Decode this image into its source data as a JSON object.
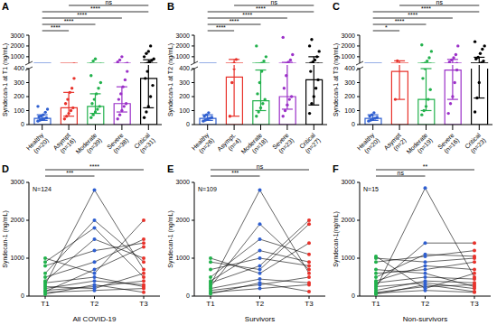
{
  "chart_data": [
    {
      "type": "bar",
      "panel_label": "A",
      "ylabel": "Syndecan-1 at T1 (ng/mL)",
      "categories": [
        "Healthy (n=20)",
        "Asympt (n=16)",
        "Moderate (n=39)",
        "Severe (n=38)",
        "Critical (n=31)"
      ],
      "colors": [
        "#2f5fd0",
        "#e8322b",
        "#22b14c",
        "#9b30c8",
        "#000000"
      ],
      "values": [
        45,
        120,
        130,
        150,
        330
      ],
      "error_ranges": [
        [
          30,
          70
        ],
        [
          60,
          230
        ],
        [
          80,
          220
        ],
        [
          90,
          270
        ],
        [
          120,
          720
        ]
      ],
      "points": [
        [
          25,
          32,
          38,
          42,
          48,
          55,
          62,
          70,
          88,
          110,
          130
        ],
        [
          40,
          60,
          80,
          100,
          120,
          150,
          180,
          230,
          260,
          330
        ],
        [
          50,
          70,
          90,
          110,
          130,
          150,
          180,
          220,
          260,
          300,
          350,
          600,
          800
        ],
        [
          40,
          70,
          100,
          130,
          150,
          180,
          220,
          270,
          320,
          380,
          500,
          700,
          1000
        ],
        [
          50,
          90,
          130,
          200,
          280,
          330,
          380,
          500,
          650,
          800,
          1000,
          1300,
          1500,
          2000
        ]
      ],
      "ylim": [
        0,
        3000
      ],
      "y_break": 400,
      "yticks": [
        0,
        100,
        200,
        300,
        400,
        1000,
        2000,
        3000
      ],
      "comparisons": [
        {
          "between": [
            "Healthy (n=20)",
            "Asympt (n=16)"
          ],
          "label": "****"
        },
        {
          "between": [
            "Healthy (n=20)",
            "Moderate (n=39)"
          ],
          "label": "****"
        },
        {
          "between": [
            "Healthy (n=20)",
            "Severe (n=38)"
          ],
          "label": "****"
        },
        {
          "between": [
            "Healthy (n=20)",
            "Critical (n=31)"
          ],
          "label": "****"
        },
        {
          "between": [
            "Asympt (n=16)",
            "Critical (n=31)"
          ],
          "label": "ns"
        }
      ]
    },
    {
      "type": "bar",
      "panel_label": "B",
      "ylabel": "Syndecan-1 at T2 (ng/mL)",
      "categories": [
        "Healthy (n=26)",
        "Asympt. (n=4)",
        "Moderate (n=18)",
        "Severe (n=23)",
        "Critical (n=27)"
      ],
      "colors": [
        "#2f5fd0",
        "#e8322b",
        "#22b14c",
        "#9b30c8",
        "#000000"
      ],
      "values": [
        45,
        340,
        170,
        200,
        320
      ],
      "error_ranges": [
        [
          30,
          70
        ],
        [
          60,
          750
        ],
        [
          100,
          390
        ],
        [
          110,
          480
        ],
        [
          140,
          1000
        ]
      ],
      "points": [
        [
          25,
          32,
          40,
          45,
          52,
          60,
          70,
          85
        ],
        [
          60,
          300,
          400,
          750
        ],
        [
          60,
          90,
          120,
          150,
          180,
          220,
          300,
          380,
          600,
          1000,
          2000
        ],
        [
          60,
          100,
          140,
          180,
          200,
          260,
          350,
          480,
          700,
          1200,
          2800
        ],
        [
          80,
          150,
          200,
          260,
          320,
          380,
          500,
          700,
          1000,
          1500,
          2000,
          2600
        ]
      ],
      "ylim": [
        0,
        3000
      ],
      "y_break": 400,
      "yticks": [
        0,
        100,
        200,
        300,
        400,
        1000,
        2000,
        3000
      ],
      "comparisons": [
        {
          "between": [
            "Healthy (n=26)",
            "Asympt. (n=4)"
          ],
          "label": "****"
        },
        {
          "between": [
            "Healthy (n=26)",
            "Moderate (n=18)"
          ],
          "label": "****"
        },
        {
          "between": [
            "Healthy (n=26)",
            "Severe (n=23)"
          ],
          "label": "****"
        },
        {
          "between": [
            "Healthy (n=26)",
            "Critical (n=27)"
          ],
          "label": "****"
        },
        {
          "between": [
            "Asympt. (n=4)",
            "Critical (n=27)"
          ],
          "label": "ns"
        }
      ]
    },
    {
      "type": "bar",
      "panel_label": "C",
      "ylabel": "Syndecan-1 at T3 (ng/mL)",
      "categories": [
        "Healthy (n=20)",
        "Asympt (n=2)",
        "Moderate (n=19)",
        "Severe (n=16)",
        "Critical (n=23)"
      ],
      "colors": [
        "#2f5fd0",
        "#e8322b",
        "#22b14c",
        "#9b30c8",
        "#000000"
      ],
      "values": [
        45,
        380,
        180,
        390,
        420
      ],
      "error_ranges": [
        [
          30,
          70
        ],
        [
          180,
          620
        ],
        [
          100,
          400
        ],
        [
          180,
          750
        ],
        [
          190,
          950
        ]
      ],
      "points": [
        [
          25,
          32,
          40,
          45,
          52,
          60,
          70,
          85
        ],
        [
          180,
          620
        ],
        [
          70,
          100,
          130,
          180,
          250,
          330,
          400,
          600,
          900,
          1500,
          2100
        ],
        [
          80,
          150,
          200,
          300,
          390,
          500,
          700,
          900,
          1200,
          2000
        ],
        [
          90,
          190,
          300,
          420,
          600,
          800,
          950,
          1300,
          1700,
          2000,
          2400
        ]
      ],
      "ylim": [
        0,
        3000
      ],
      "y_break": 400,
      "yticks": [
        0,
        100,
        200,
        300,
        400,
        1000,
        2000,
        3000
      ],
      "comparisons": [
        {
          "between": [
            "Healthy (n=20)",
            "Asympt (n=2)"
          ],
          "label": "*"
        },
        {
          "between": [
            "Healthy (n=20)",
            "Moderate (n=19)"
          ],
          "label": "****"
        },
        {
          "between": [
            "Healthy (n=20)",
            "Severe (n=16)"
          ],
          "label": "****"
        },
        {
          "between": [
            "Healthy (n=20)",
            "Critical (n=23)"
          ],
          "label": "****"
        },
        {
          "between": [
            "Asympt (n=2)",
            "Critical (n=23)"
          ],
          "label": "ns"
        }
      ]
    },
    {
      "type": "line",
      "panel_label": "D",
      "ylabel": "Syndecan-1 (ng/mL)",
      "xlabel": "All COVID-19",
      "annotation": "N=124",
      "categories": [
        "T1",
        "T2",
        "T3"
      ],
      "colors": [
        "#22b14c",
        "#2f5fd0",
        "#e8322b"
      ],
      "values": [
        [
          100,
          150,
          200
        ],
        [
          300,
          2800,
          700
        ],
        [
          200,
          400,
          300
        ],
        [
          500,
          900,
          1500
        ],
        [
          1000,
          600,
          2000
        ],
        [
          150,
          250,
          400
        ],
        [
          50,
          300,
          100
        ],
        [
          400,
          1500,
          1000
        ],
        [
          800,
          1200,
          1400
        ],
        [
          250,
          200,
          600
        ],
        [
          600,
          2000,
          900
        ],
        [
          120,
          700,
          1300
        ],
        [
          350,
          500,
          250
        ],
        [
          900,
          1800,
          500
        ]
      ],
      "ylim": [
        0,
        3000
      ],
      "yticks": [
        0,
        1000,
        2000,
        3000
      ],
      "comparisons": [
        {
          "between": [
            "T1",
            "T2"
          ],
          "label": "***"
        },
        {
          "between": [
            "T1",
            "T3"
          ],
          "label": "****"
        }
      ]
    },
    {
      "type": "line",
      "panel_label": "E",
      "ylabel": "Syndecan-1 (ng/mL)",
      "xlabel": "Survivors",
      "annotation": "N=109",
      "categories": [
        "T1",
        "T2",
        "T3"
      ],
      "colors": [
        "#22b14c",
        "#2f5fd0",
        "#e8322b"
      ],
      "values": [
        [
          100,
          200,
          300
        ],
        [
          300,
          2800,
          600
        ],
        [
          200,
          450,
          350
        ],
        [
          500,
          1500,
          1100
        ],
        [
          900,
          700,
          1900
        ],
        [
          150,
          300,
          500
        ],
        [
          60,
          350,
          120
        ],
        [
          400,
          1200,
          900
        ],
        [
          700,
          1000,
          800
        ],
        [
          250,
          1900,
          700
        ],
        [
          1000,
          600,
          1400
        ],
        [
          350,
          800,
          2000
        ]
      ],
      "ylim": [
        0,
        3000
      ],
      "yticks": [
        0,
        1000,
        2000,
        3000
      ],
      "comparisons": [
        {
          "between": [
            "T1",
            "T2"
          ],
          "label": "***"
        },
        {
          "between": [
            "T1",
            "T3"
          ],
          "label": "ns"
        }
      ]
    },
    {
      "type": "line",
      "panel_label": "F",
      "ylabel": "Syndecan-1(ng/mL)",
      "xlabel": "Non-survivors",
      "annotation": "N=15",
      "categories": [
        "T1",
        "T2",
        "T3"
      ],
      "colors": [
        "#22b14c",
        "#2f5fd0",
        "#e8322b"
      ],
      "values": [
        [
          100,
          250,
          300
        ],
        [
          200,
          2850,
          500
        ],
        [
          300,
          1400,
          1400
        ],
        [
          500,
          1100,
          1050
        ],
        [
          1000,
          900,
          1000
        ],
        [
          150,
          400,
          350
        ],
        [
          50,
          300,
          120
        ],
        [
          400,
          800,
          700
        ],
        [
          700,
          600,
          250
        ],
        [
          900,
          1050,
          1200
        ],
        [
          250,
          350,
          200
        ],
        [
          600,
          700,
          900
        ],
        [
          80,
          150,
          100
        ],
        [
          350,
          500,
          450
        ],
        [
          1050,
          200,
          600
        ]
      ],
      "ylim": [
        0,
        3000
      ],
      "yticks": [
        0,
        1000,
        2000,
        3000
      ],
      "comparisons": [
        {
          "between": [
            "T1",
            "T2"
          ],
          "label": "ns"
        },
        {
          "between": [
            "T1",
            "T3"
          ],
          "label": "**"
        }
      ]
    }
  ]
}
